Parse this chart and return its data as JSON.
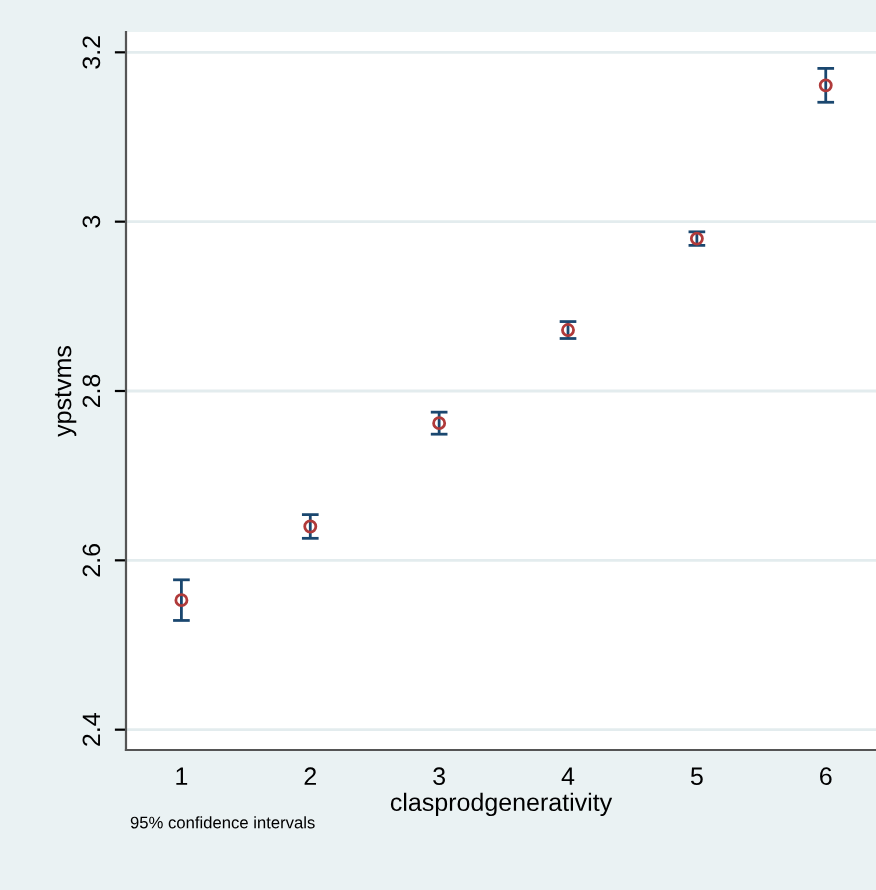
{
  "chart_data": {
    "type": "scatter",
    "xlabel": "clasprodgenerativity",
    "ylabel": "ypstvms",
    "annotations": [
      "95% confidence intervals"
    ],
    "x": [
      1,
      2,
      3,
      4,
      5,
      6
    ],
    "series": [
      {
        "color": "#b03a3a",
        "values": [
          2.553,
          2.64,
          2.762,
          2.872,
          2.98,
          3.161
        ],
        "errors": [
          0.024,
          0.014,
          0.013,
          0.01,
          0.008,
          0.02
        ]
      }
    ],
    "xlim": [
      0.57,
      6.39
    ],
    "xticks": [
      1,
      2,
      3,
      4,
      5,
      6
    ],
    "ylim": [
      2.376,
      3.224
    ],
    "yticks": [
      2.4,
      2.6,
      2.8,
      3,
      3.2
    ],
    "grid": "y",
    "marker": "circle",
    "legend": false
  }
}
